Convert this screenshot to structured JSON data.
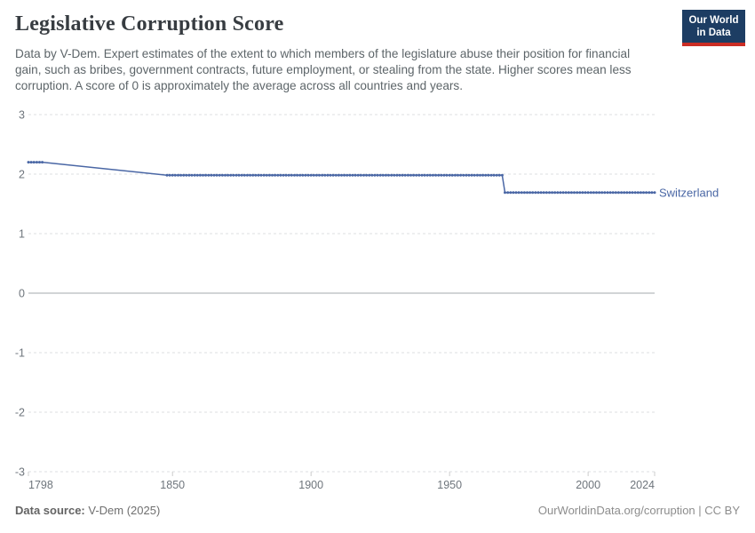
{
  "header": {
    "title": "Legislative Corruption Score",
    "subtitle": "Data by V-Dem. Expert estimates of the extent to which members of the legislature abuse their position for financial gain, such as bribes, government contracts, future employment, or stealing from the state. Higher scores mean less corruption. A score of 0 is approximately the average across all countries and years.",
    "logo": {
      "line1": "Our World",
      "line2": "in Data",
      "bg_color": "#1d3d63",
      "stripe_color": "#cb2d24"
    }
  },
  "chart_data": {
    "type": "line",
    "title": "Legislative Corruption Score",
    "xlabel": "",
    "ylabel": "",
    "xlim": [
      1798,
      2024
    ],
    "ylim": [
      -3,
      3
    ],
    "x_ticks": [
      1798,
      1850,
      1900,
      1950,
      2000,
      2024
    ],
    "y_ticks": [
      3,
      2,
      1,
      0,
      -1,
      -2,
      -3
    ],
    "grid": "horizontal dashed gridlines, solid line at 0",
    "legend_position": "label at end of line",
    "series": [
      {
        "name": "Switzerland",
        "color": "#4a67a5",
        "segments": [
          {
            "start_year": 1798,
            "end_year": 1803,
            "value": 2.2
          },
          {
            "start_year": 1848,
            "end_year": 1969,
            "value": 1.98
          },
          {
            "start_year": 1970,
            "end_year": 2024,
            "value": 1.69
          }
        ],
        "note": "yearly point markers on each segment; straight unmarked interpolation across the 1804-1847 data gap; step drop between 1969 and 1970"
      }
    ]
  },
  "footer": {
    "source_label": "Data source:",
    "source_value": " V-Dem (2025)",
    "credit": "OurWorldinData.org/corruption | CC BY"
  },
  "colors": {
    "line": "#4a67a5",
    "gridline": "#dcdfe2",
    "zero_line": "#c2c5c8",
    "tick_label": "#6e757c",
    "title_text": "#373c41",
    "subtitle_text": "#5d6569"
  }
}
